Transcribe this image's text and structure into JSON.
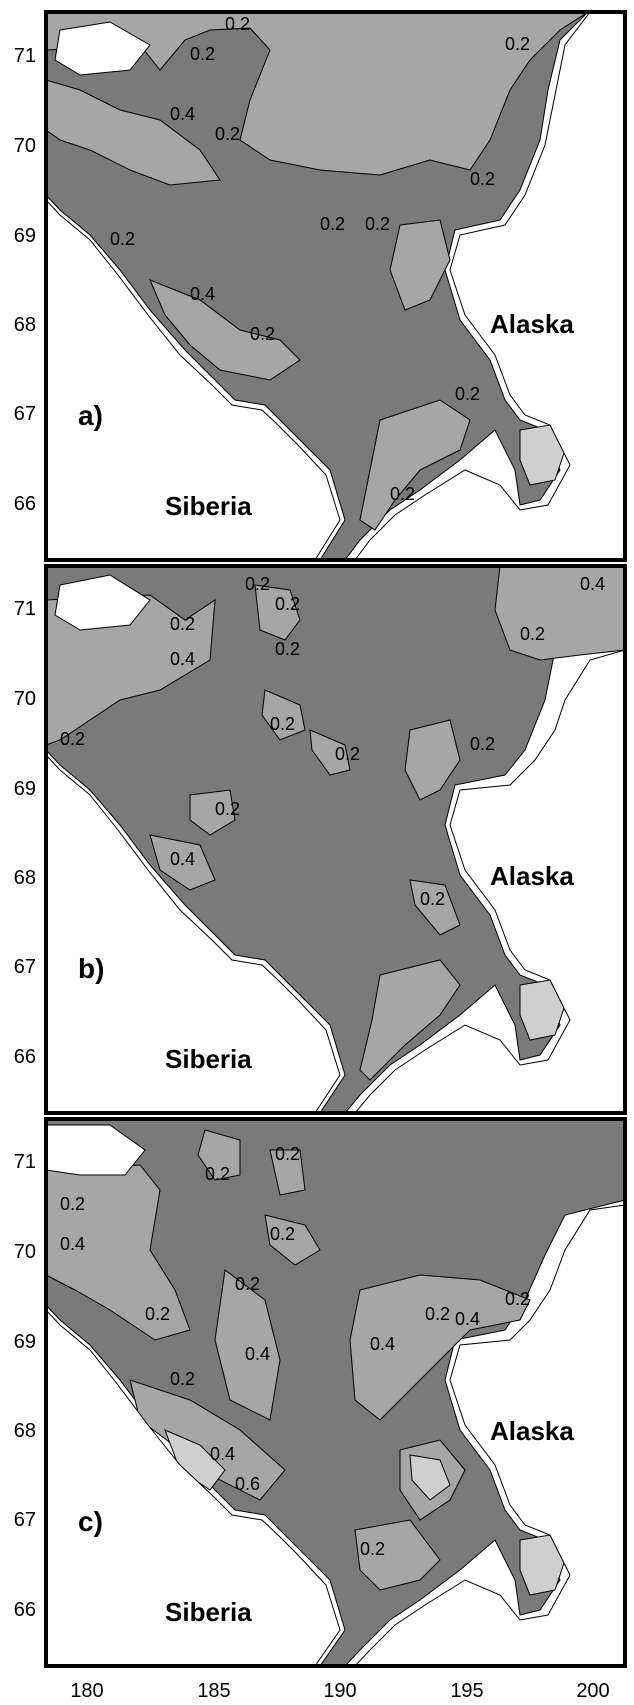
{
  "x_ticks": [
    "180",
    "185",
    "190",
    "195",
    "200"
  ],
  "y_ticks": [
    "66",
    "67",
    "68",
    "69",
    "70",
    "71"
  ],
  "colors": {
    "land": "#ffffff",
    "sea_low": "#7a7a7a",
    "sea_mid": "#a6a6a6",
    "sea_high": "#cfcfcf",
    "contour": "#000000",
    "frame": "#000000"
  },
  "panels": [
    {
      "letter": "a)",
      "places": [
        "Alaska",
        "Siberia"
      ],
      "contour_labels": [
        "0.2",
        "0.2",
        "0.2",
        "0.4",
        "0.2",
        "0.2",
        "0.2",
        "0.2",
        "0.4",
        "0.2",
        "0.2",
        "0.2",
        "0.2"
      ]
    },
    {
      "letter": "b)",
      "places": [
        "Alaska",
        "Siberia"
      ],
      "contour_labels": [
        "0.2",
        "0.2",
        "0.4",
        "0.2",
        "0.2",
        "0.2",
        "0.2",
        "0.2",
        "0.2",
        "0.4",
        "0.2",
        "0.2",
        "0.2",
        "0.4"
      ]
    },
    {
      "letter": "c)",
      "places": [
        "Alaska",
        "Siberia"
      ],
      "contour_labels": [
        "0.2",
        "0.2",
        "0.2",
        "0.4",
        "0.2",
        "0.2",
        "0.2",
        "0.4",
        "0.2",
        "0.2",
        "0.4",
        "0.4",
        "0.2",
        "0.4",
        "0.6",
        "0.2"
      ]
    }
  ]
}
